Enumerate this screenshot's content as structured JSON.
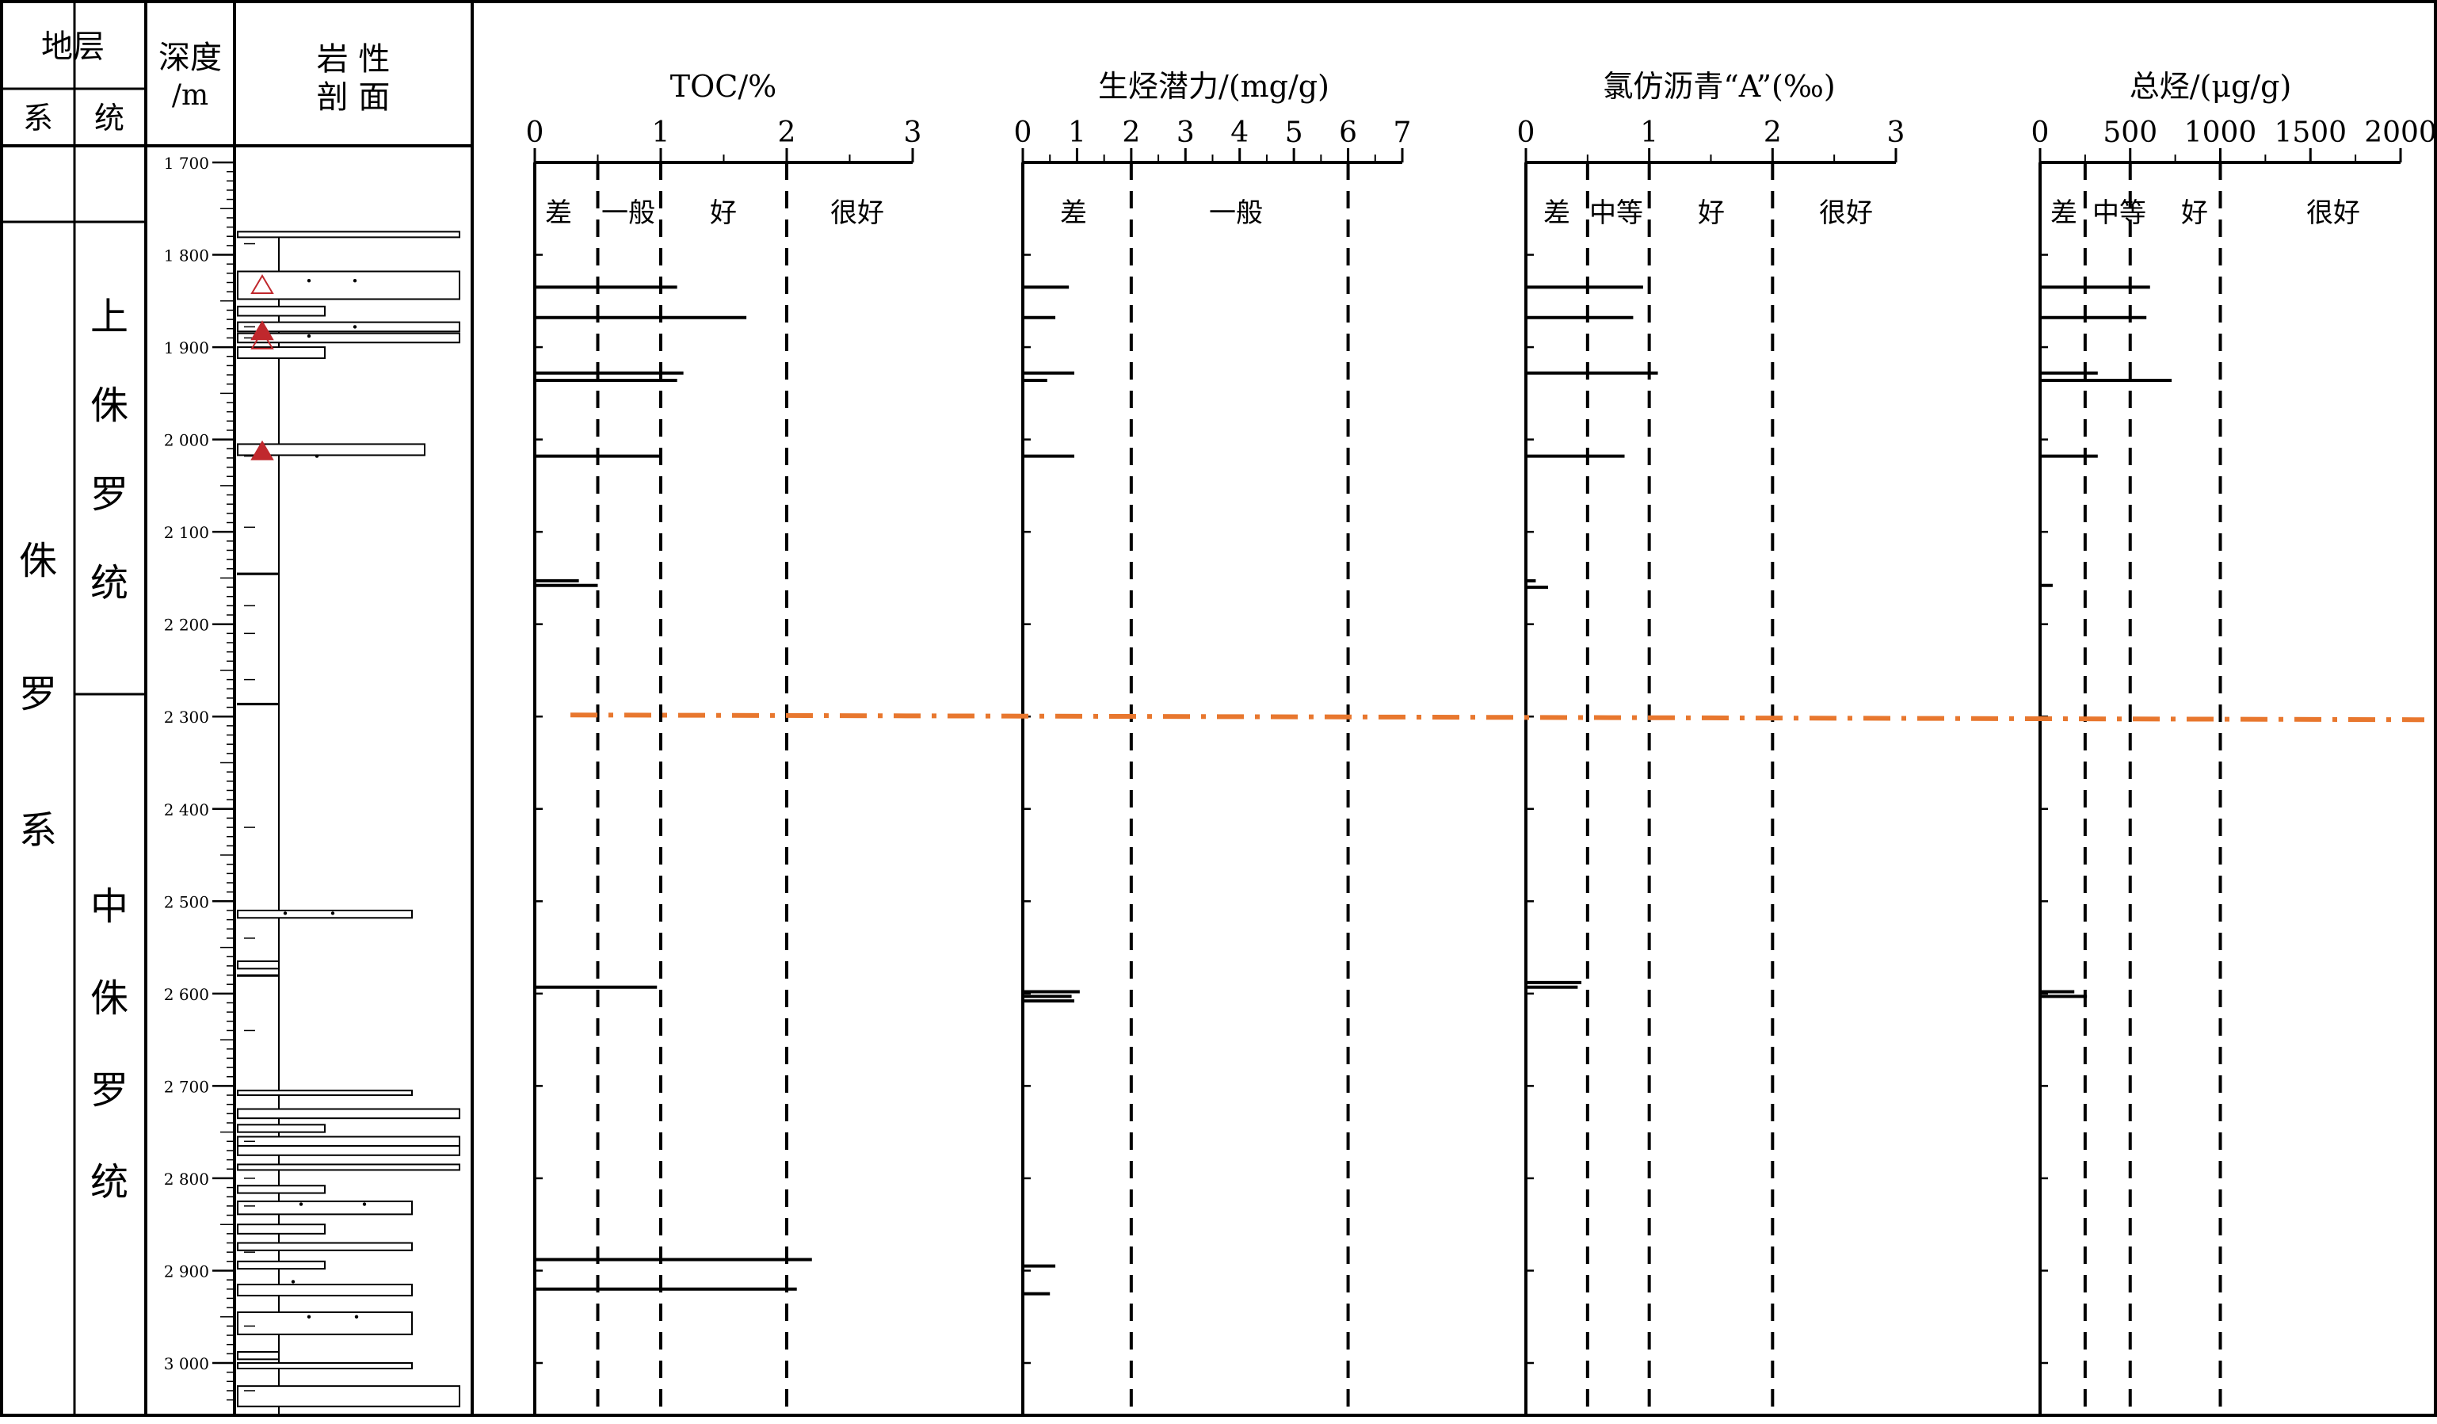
{
  "left_panel": {
    "stratum_header": "地层",
    "system_header": "系",
    "series_header": "统",
    "depth_header_line1": "深度",
    "depth_header_line2": "/m",
    "lith_header_line1": "岩 性",
    "lith_header_line2": "剖 面",
    "system_name_chars": [
      "侏",
      "罗",
      "系"
    ],
    "upper_series_chars": [
      "上",
      "侏",
      "罗",
      "统"
    ],
    "middle_series_chars": [
      "中",
      "侏",
      "罗",
      "统"
    ],
    "depth_ticks": [
      "1 700",
      "1 800",
      "1 900",
      "2 000",
      "2 100",
      "2 200",
      "2 300",
      "2 400",
      "2 500",
      "2 600",
      "2 700",
      "2 800",
      "2 900",
      "3 000"
    ],
    "boundary_depth_m": 2300,
    "lithology_markers_depth_m": [
      1833,
      1883,
      1893,
      2013
    ]
  },
  "chart_data": [
    {
      "type": "bar",
      "orientation": "horizontal",
      "title": "TOC/%",
      "xlim": [
        0,
        3
      ],
      "tick_labels": [
        "0",
        "1",
        "2",
        "3"
      ],
      "thresholds": [
        0.5,
        1,
        2
      ],
      "classes": [
        "差",
        "一般",
        "好",
        "很好"
      ],
      "depth_m": [
        1835,
        1868,
        1928,
        1936,
        2018,
        2153,
        2158,
        2593,
        2888,
        2920
      ],
      "values": [
        1.13,
        1.68,
        1.18,
        1.13,
        1.0,
        0.35,
        0.5,
        0.97,
        2.2,
        2.08
      ]
    },
    {
      "type": "bar",
      "orientation": "horizontal",
      "title": "生烃潜力/(mg/g)",
      "xlim": [
        0,
        7
      ],
      "tick_labels": [
        "0",
        "1",
        "2",
        "3",
        "4",
        "5",
        "6",
        "7"
      ],
      "thresholds": [
        2,
        6
      ],
      "classes": [
        "差",
        "一般"
      ],
      "depth_m": [
        1835,
        1868,
        1928,
        1936,
        2018,
        2598,
        2603,
        2608,
        2895,
        2925
      ],
      "values": [
        0.85,
        0.6,
        0.95,
        0.45,
        0.95,
        1.05,
        0.9,
        0.95,
        0.6,
        0.5
      ]
    },
    {
      "type": "bar",
      "orientation": "horizontal",
      "title": "氯仿沥青“A”(‰)",
      "xlim": [
        0,
        3
      ],
      "tick_labels": [
        "0",
        "1",
        "2",
        "3"
      ],
      "thresholds": [
        0.5,
        1,
        2
      ],
      "classes": [
        "差",
        "中等",
        "好",
        "很好"
      ],
      "depth_m": [
        1835,
        1868,
        1928,
        2018,
        2153,
        2160,
        2588,
        2593
      ],
      "values": [
        0.95,
        0.87,
        1.07,
        0.8,
        0.08,
        0.18,
        0.45,
        0.42
      ]
    },
    {
      "type": "bar",
      "orientation": "horizontal",
      "title": "总烃/(μg/g)",
      "xlim": [
        0,
        2000
      ],
      "tick_labels": [
        "0",
        "500",
        "1000",
        "1500",
        "2000"
      ],
      "thresholds": [
        250,
        500,
        1000
      ],
      "classes": [
        "差",
        "中等",
        "好",
        "很好"
      ],
      "depth_m": [
        1835,
        1868,
        1928,
        1936,
        2018,
        2158,
        2598,
        2603
      ],
      "values": [
        610,
        590,
        320,
        730,
        320,
        70,
        190,
        260
      ]
    }
  ]
}
